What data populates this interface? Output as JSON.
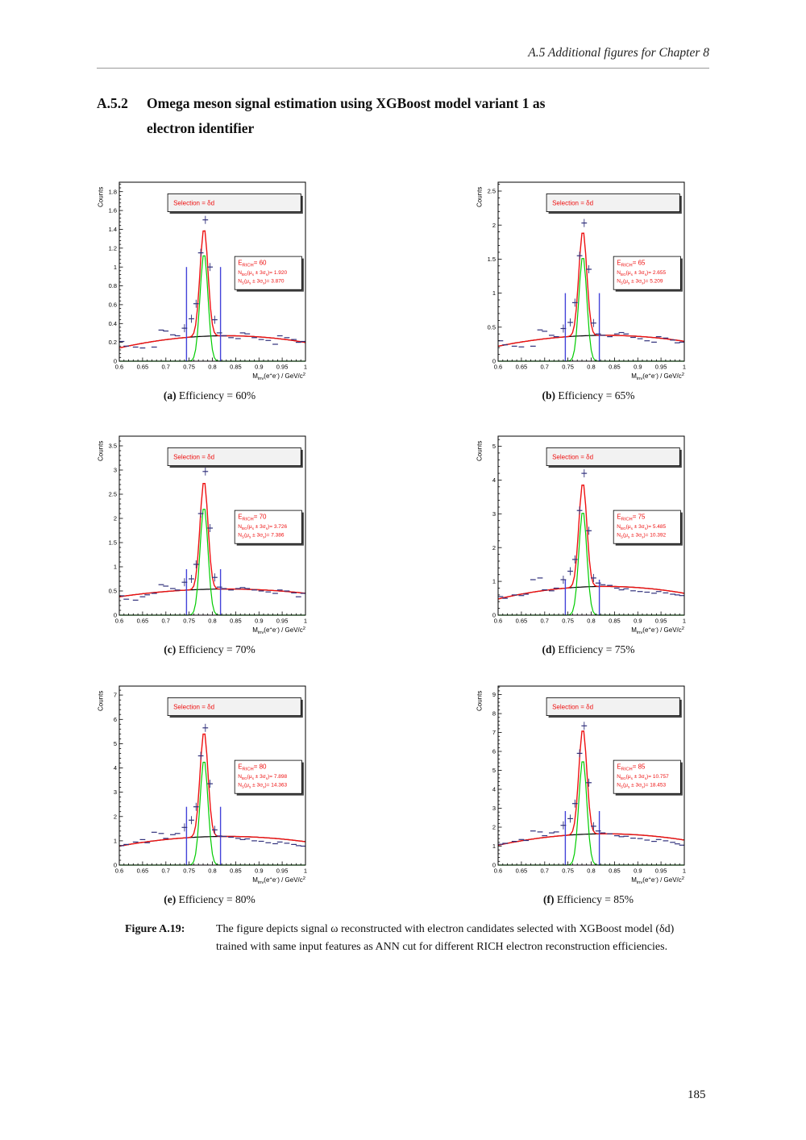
{
  "page": {
    "header": "A.5  Additional figures for Chapter 8",
    "section_number": "A.5.2",
    "section_title_line1": "Omega meson signal estimation using XGBoost model variant 1 as",
    "section_title_line2": "electron identifier",
    "figure_caption_label": "Figure A.19:",
    "figure_caption_text": "The figure depicts signal ω reconstructed with electron candidates selected with XGBoost model (δd) trained with same input features as ANN cut for different RICH electron reconstruction efficiencies.",
    "page_number": "185"
  },
  "chart_config": {
    "xmin": 0.6,
    "xmax": 1.0,
    "xstep": 0.05,
    "xminor": 0.01,
    "xticks": [
      0.6,
      0.65,
      0.7,
      0.75,
      0.8,
      0.85,
      0.9,
      0.95,
      1
    ],
    "gauss_mean": 0.782,
    "gauss_sigma": 0.0085,
    "bg_center": 0.83,
    "signal_window": [
      0.7445,
      0.8175
    ],
    "selection_label": "Selection = δd",
    "ylabel": "Counts",
    "xlabel_segments": [
      {
        "t": "M"
      },
      {
        "t": "inv",
        "sub": 1
      },
      {
        "t": "(e"
      },
      {
        "t": "+",
        "sup": 1
      },
      {
        "t": "e"
      },
      {
        "t": "-",
        "sup": 1
      },
      {
        "t": ") / GeV/c"
      },
      {
        "t": "2",
        "sup": 1
      }
    ],
    "stat_templates": [
      {
        "key": "e_rich",
        "segs": [
          {
            "t": "E"
          },
          {
            "t": "RICH",
            "sub": 1
          },
          {
            "t": "= {v}"
          }
        ]
      },
      {
        "key": "n_bg_3sigma",
        "segs": [
          {
            "t": "N"
          },
          {
            "t": "BG",
            "sub": 1
          },
          {
            "t": "(μ"
          },
          {
            "t": "s",
            "sub": 1
          },
          {
            "t": " ± 3σ"
          },
          {
            "t": "s",
            "sub": 1
          },
          {
            "t": ")= {v}"
          }
        ]
      },
      {
        "key": "n_s_3sigma",
        "segs": [
          {
            "t": "N"
          },
          {
            "t": "S",
            "sub": 1
          },
          {
            "t": "(μ"
          },
          {
            "t": "s",
            "sub": 1
          },
          {
            "t": " ± 3σ"
          },
          {
            "t": "s",
            "sub": 1
          },
          {
            "t": ")= {v}"
          }
        ]
      }
    ],
    "colors": {
      "total_fit": "#ee1111",
      "signal_fit": "#00cc00",
      "background_fit": "#000000",
      "signal_window_lines": "#4343d9",
      "markers": "#31317c",
      "stats_text": "#ee1111",
      "selection_box_fill": "#f2f2f2",
      "stats_box_fill": "#ffffff",
      "frame": "#000000"
    }
  },
  "chart_data": [
    {
      "id": "a",
      "type": "line",
      "caption_label": "(a)",
      "caption_text": "Efficiency = 60%",
      "efficiency_pct": 60,
      "e_rich": "60",
      "n_bg_3sigma": "1.920",
      "n_s_3sigma": "3.870",
      "ymax": 1.9,
      "ystep": 0.2,
      "bg_at_xmin": 0.14,
      "bg_peak": 0.27,
      "signal_peak": 1.15,
      "blue_line_height": 1.0,
      "markers": [
        [
          0.605,
          0.21
        ],
        [
          0.615,
          0.16
        ],
        [
          0.635,
          0.15
        ],
        [
          0.65,
          0.14
        ],
        [
          0.675,
          0.15
        ],
        [
          0.69,
          0.33
        ],
        [
          0.7,
          0.32
        ],
        [
          0.715,
          0.28
        ],
        [
          0.725,
          0.27
        ],
        [
          0.74,
          0.35
        ],
        [
          0.755,
          0.45
        ],
        [
          0.765,
          0.61
        ],
        [
          0.775,
          1.15
        ],
        [
          0.785,
          1.5
        ],
        [
          0.795,
          1.0
        ],
        [
          0.805,
          0.44
        ],
        [
          0.815,
          0.3
        ],
        [
          0.825,
          0.27
        ],
        [
          0.84,
          0.25
        ],
        [
          0.855,
          0.24
        ],
        [
          0.865,
          0.3
        ],
        [
          0.875,
          0.29
        ],
        [
          0.89,
          0.25
        ],
        [
          0.905,
          0.23
        ],
        [
          0.92,
          0.22
        ],
        [
          0.935,
          0.18
        ],
        [
          0.945,
          0.27
        ],
        [
          0.96,
          0.25
        ],
        [
          0.975,
          0.23
        ],
        [
          0.985,
          0.2
        ],
        [
          0.995,
          0.21
        ]
      ]
    },
    {
      "id": "b",
      "type": "line",
      "caption_label": "(b)",
      "caption_text": "Efficiency = 65%",
      "efficiency_pct": 65,
      "e_rich": "65",
      "n_bg_3sigma": "2.655",
      "n_s_3sigma": "5.209",
      "ymax": 2.63,
      "ystep": 0.5,
      "bg_at_xmin": 0.22,
      "bg_peak": 0.38,
      "signal_peak": 1.55,
      "blue_line_height": 1.0,
      "markers": [
        [
          0.605,
          0.3
        ],
        [
          0.615,
          0.24
        ],
        [
          0.635,
          0.22
        ],
        [
          0.65,
          0.21
        ],
        [
          0.675,
          0.22
        ],
        [
          0.69,
          0.46
        ],
        [
          0.7,
          0.44
        ],
        [
          0.715,
          0.38
        ],
        [
          0.725,
          0.36
        ],
        [
          0.74,
          0.48
        ],
        [
          0.755,
          0.57
        ],
        [
          0.765,
          0.86
        ],
        [
          0.775,
          1.55
        ],
        [
          0.785,
          2.03
        ],
        [
          0.795,
          1.35
        ],
        [
          0.805,
          0.56
        ],
        [
          0.815,
          0.4
        ],
        [
          0.825,
          0.38
        ],
        [
          0.84,
          0.36
        ],
        [
          0.855,
          0.4
        ],
        [
          0.865,
          0.42
        ],
        [
          0.875,
          0.4
        ],
        [
          0.89,
          0.35
        ],
        [
          0.905,
          0.33
        ],
        [
          0.92,
          0.3
        ],
        [
          0.935,
          0.28
        ],
        [
          0.945,
          0.36
        ],
        [
          0.96,
          0.34
        ],
        [
          0.975,
          0.31
        ],
        [
          0.985,
          0.27
        ],
        [
          0.995,
          0.28
        ]
      ]
    },
    {
      "id": "c",
      "type": "line",
      "caption_label": "(c)",
      "caption_text": "Efficiency = 70%",
      "efficiency_pct": 70,
      "e_rich": "70",
      "n_bg_3sigma": "3.726",
      "n_s_3sigma": "7.386",
      "ymax": 3.7,
      "ystep": 0.5,
      "bg_at_xmin": 0.38,
      "bg_peak": 0.54,
      "signal_peak": 2.25,
      "blue_line_height": 0.95,
      "markers": [
        [
          0.605,
          0.4
        ],
        [
          0.615,
          0.33
        ],
        [
          0.635,
          0.31
        ],
        [
          0.65,
          0.38
        ],
        [
          0.66,
          0.42
        ],
        [
          0.675,
          0.45
        ],
        [
          0.69,
          0.63
        ],
        [
          0.7,
          0.6
        ],
        [
          0.715,
          0.55
        ],
        [
          0.725,
          0.52
        ],
        [
          0.74,
          0.68
        ],
        [
          0.755,
          0.75
        ],
        [
          0.765,
          1.05
        ],
        [
          0.775,
          2.1
        ],
        [
          0.785,
          2.97
        ],
        [
          0.795,
          1.8
        ],
        [
          0.805,
          0.78
        ],
        [
          0.815,
          0.58
        ],
        [
          0.825,
          0.55
        ],
        [
          0.84,
          0.52
        ],
        [
          0.855,
          0.55
        ],
        [
          0.865,
          0.57
        ],
        [
          0.875,
          0.55
        ],
        [
          0.89,
          0.52
        ],
        [
          0.905,
          0.5
        ],
        [
          0.92,
          0.48
        ],
        [
          0.935,
          0.45
        ],
        [
          0.945,
          0.52
        ],
        [
          0.96,
          0.5
        ],
        [
          0.975,
          0.46
        ],
        [
          0.985,
          0.38
        ],
        [
          0.995,
          0.45
        ]
      ]
    },
    {
      "id": "d",
      "type": "line",
      "caption_label": "(d)",
      "caption_text": "Efficiency = 75%",
      "efficiency_pct": 75,
      "e_rich": "75",
      "n_bg_3sigma": "5.485",
      "n_s_3sigma": "10.392",
      "ymax": 5.3,
      "ystep": 1,
      "bg_at_xmin": 0.48,
      "bg_peak": 0.85,
      "signal_peak": 3.1,
      "blue_line_height": 1.05,
      "markers": [
        [
          0.605,
          0.55
        ],
        [
          0.615,
          0.5
        ],
        [
          0.635,
          0.6
        ],
        [
          0.65,
          0.58
        ],
        [
          0.66,
          0.62
        ],
        [
          0.675,
          1.05
        ],
        [
          0.69,
          1.1
        ],
        [
          0.7,
          0.75
        ],
        [
          0.715,
          0.72
        ],
        [
          0.725,
          0.8
        ],
        [
          0.74,
          1.05
        ],
        [
          0.755,
          1.3
        ],
        [
          0.765,
          1.65
        ],
        [
          0.775,
          3.1
        ],
        [
          0.785,
          4.2
        ],
        [
          0.795,
          2.5
        ],
        [
          0.805,
          1.1
        ],
        [
          0.815,
          0.95
        ],
        [
          0.825,
          0.9
        ],
        [
          0.84,
          0.88
        ],
        [
          0.855,
          0.8
        ],
        [
          0.865,
          0.75
        ],
        [
          0.875,
          0.78
        ],
        [
          0.89,
          0.72
        ],
        [
          0.905,
          0.7
        ],
        [
          0.92,
          0.68
        ],
        [
          0.935,
          0.65
        ],
        [
          0.945,
          0.7
        ],
        [
          0.96,
          0.66
        ],
        [
          0.975,
          0.62
        ],
        [
          0.985,
          0.6
        ],
        [
          0.995,
          0.58
        ]
      ]
    },
    {
      "id": "e",
      "type": "line",
      "caption_label": "(e)",
      "caption_text": "Efficiency = 80%",
      "efficiency_pct": 80,
      "e_rich": "80",
      "n_bg_3sigma": "7.898",
      "n_s_3sigma": "14.363",
      "ymax": 7.37,
      "ystep": 1,
      "bg_at_xmin": 0.78,
      "bg_peak": 1.18,
      "signal_peak": 4.35,
      "blue_line_height": 2.4,
      "markers": [
        [
          0.605,
          0.8
        ],
        [
          0.615,
          0.85
        ],
        [
          0.635,
          0.95
        ],
        [
          0.65,
          1.05
        ],
        [
          0.66,
          0.92
        ],
        [
          0.675,
          1.35
        ],
        [
          0.69,
          1.3
        ],
        [
          0.7,
          1.1
        ],
        [
          0.715,
          1.25
        ],
        [
          0.725,
          1.3
        ],
        [
          0.74,
          1.55
        ],
        [
          0.755,
          1.85
        ],
        [
          0.765,
          2.4
        ],
        [
          0.775,
          4.5
        ],
        [
          0.785,
          5.65
        ],
        [
          0.795,
          3.35
        ],
        [
          0.805,
          1.45
        ],
        [
          0.815,
          1.2
        ],
        [
          0.825,
          1.18
        ],
        [
          0.84,
          1.15
        ],
        [
          0.855,
          1.1
        ],
        [
          0.865,
          1.05
        ],
        [
          0.875,
          1.08
        ],
        [
          0.89,
          1.0
        ],
        [
          0.905,
          0.98
        ],
        [
          0.92,
          0.92
        ],
        [
          0.935,
          0.88
        ],
        [
          0.945,
          0.95
        ],
        [
          0.96,
          0.9
        ],
        [
          0.975,
          0.85
        ],
        [
          0.985,
          0.8
        ],
        [
          0.995,
          0.78
        ]
      ]
    },
    {
      "id": "f",
      "type": "line",
      "caption_label": "(f)",
      "caption_text": "Efficiency = 85%",
      "efficiency_pct": 85,
      "e_rich": "85",
      "n_bg_3sigma": "10.757",
      "n_s_3sigma": "18.453",
      "ymax": 9.45,
      "ystep": 1,
      "bg_at_xmin": 1.05,
      "bg_peak": 1.65,
      "signal_peak": 5.6,
      "blue_line_height": 2.85,
      "markers": [
        [
          0.605,
          1.1
        ],
        [
          0.615,
          1.15
        ],
        [
          0.635,
          1.25
        ],
        [
          0.65,
          1.35
        ],
        [
          0.66,
          1.3
        ],
        [
          0.675,
          1.8
        ],
        [
          0.69,
          1.75
        ],
        [
          0.7,
          1.55
        ],
        [
          0.715,
          1.7
        ],
        [
          0.725,
          1.75
        ],
        [
          0.74,
          2.1
        ],
        [
          0.755,
          2.45
        ],
        [
          0.765,
          3.25
        ],
        [
          0.775,
          5.9
        ],
        [
          0.785,
          7.35
        ],
        [
          0.795,
          4.35
        ],
        [
          0.805,
          2.05
        ],
        [
          0.815,
          1.8
        ],
        [
          0.825,
          1.7
        ],
        [
          0.84,
          1.65
        ],
        [
          0.855,
          1.55
        ],
        [
          0.865,
          1.5
        ],
        [
          0.875,
          1.52
        ],
        [
          0.89,
          1.42
        ],
        [
          0.905,
          1.4
        ],
        [
          0.92,
          1.32
        ],
        [
          0.935,
          1.25
        ],
        [
          0.945,
          1.35
        ],
        [
          0.96,
          1.28
        ],
        [
          0.975,
          1.2
        ],
        [
          0.985,
          1.12
        ],
        [
          0.995,
          1.05
        ]
      ]
    }
  ]
}
